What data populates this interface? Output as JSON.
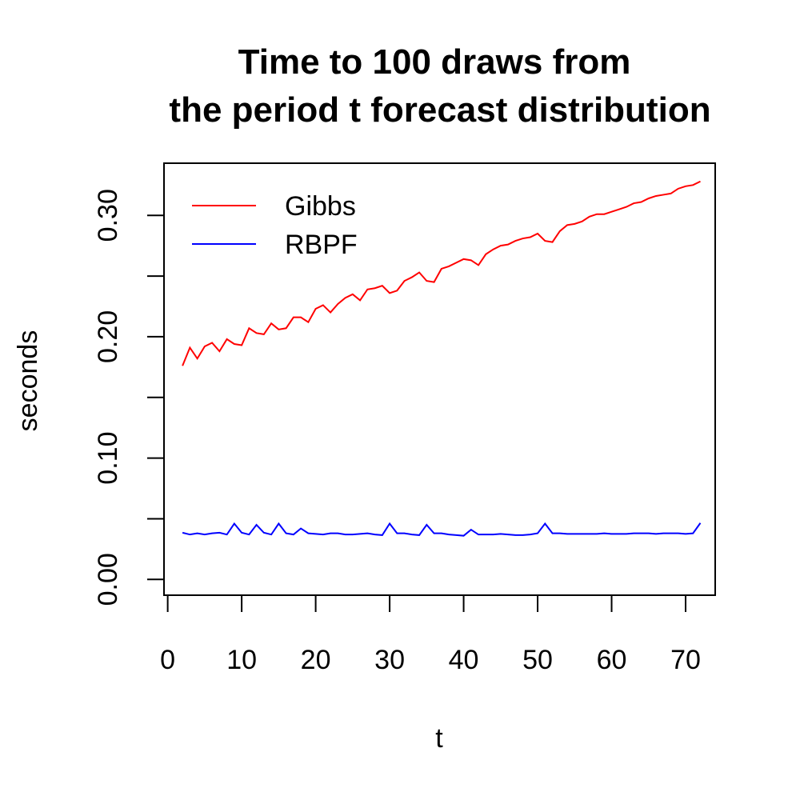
{
  "chart_data": {
    "type": "line",
    "title_lines": [
      "Time to 100 draws from",
      "the period t forecast distribution"
    ],
    "xlabel": "t",
    "ylabel": "seconds",
    "x_ticks": [
      "0",
      "10",
      "20",
      "30",
      "40",
      "50",
      "60",
      "70"
    ],
    "y_tick_labels": [
      "0.00",
      "0.10",
      "0.20",
      "0.30"
    ],
    "xlim": [
      -0.5,
      74
    ],
    "ylim": [
      -0.013,
      0.343
    ],
    "grid": false,
    "legend_position": "top-left",
    "x": [
      2,
      3,
      4,
      5,
      6,
      7,
      8,
      9,
      10,
      11,
      12,
      13,
      14,
      15,
      16,
      17,
      18,
      19,
      20,
      21,
      22,
      23,
      24,
      25,
      26,
      27,
      28,
      29,
      30,
      31,
      32,
      33,
      34,
      35,
      36,
      37,
      38,
      39,
      40,
      41,
      42,
      43,
      44,
      45,
      46,
      47,
      48,
      49,
      50,
      51,
      52,
      53,
      54,
      55,
      56,
      57,
      58,
      59,
      60,
      61,
      62,
      63,
      64,
      65,
      66,
      67,
      68,
      69,
      70,
      71,
      72
    ],
    "series": [
      {
        "name": "Gibbs",
        "color": "#ff0000",
        "values": [
          0.176,
          0.191,
          0.182,
          0.192,
          0.195,
          0.188,
          0.198,
          0.194,
          0.193,
          0.207,
          0.203,
          0.202,
          0.211,
          0.206,
          0.207,
          0.216,
          0.216,
          0.212,
          0.223,
          0.226,
          0.22,
          0.227,
          0.232,
          0.235,
          0.23,
          0.239,
          0.24,
          0.242,
          0.236,
          0.238,
          0.246,
          0.249,
          0.253,
          0.246,
          0.245,
          0.256,
          0.258,
          0.261,
          0.264,
          0.263,
          0.259,
          0.268,
          0.272,
          0.275,
          0.276,
          0.279,
          0.281,
          0.282,
          0.285,
          0.279,
          0.278,
          0.287,
          0.292,
          0.293,
          0.295,
          0.299,
          0.301,
          0.301,
          0.303,
          0.305,
          0.307,
          0.31,
          0.311,
          0.314,
          0.316,
          0.317,
          0.318,
          0.322,
          0.324,
          0.325,
          0.328
        ]
      },
      {
        "name": "RBPF",
        "color": "#0000ff",
        "values": [
          0.0385,
          0.037,
          0.038,
          0.037,
          0.038,
          0.0385,
          0.037,
          0.046,
          0.0385,
          0.037,
          0.045,
          0.0385,
          0.037,
          0.046,
          0.038,
          0.037,
          0.042,
          0.038,
          0.0375,
          0.037,
          0.038,
          0.038,
          0.037,
          0.037,
          0.0375,
          0.038,
          0.037,
          0.0365,
          0.046,
          0.038,
          0.038,
          0.037,
          0.0365,
          0.045,
          0.038,
          0.038,
          0.037,
          0.0365,
          0.036,
          0.041,
          0.037,
          0.037,
          0.037,
          0.0375,
          0.037,
          0.0365,
          0.0365,
          0.037,
          0.038,
          0.046,
          0.038,
          0.038,
          0.0375,
          0.0375,
          0.0375,
          0.0375,
          0.0375,
          0.038,
          0.0375,
          0.0375,
          0.0375,
          0.038,
          0.038,
          0.038,
          0.0375,
          0.038,
          0.038,
          0.038,
          0.0375,
          0.038,
          0.0465
        ]
      }
    ]
  }
}
